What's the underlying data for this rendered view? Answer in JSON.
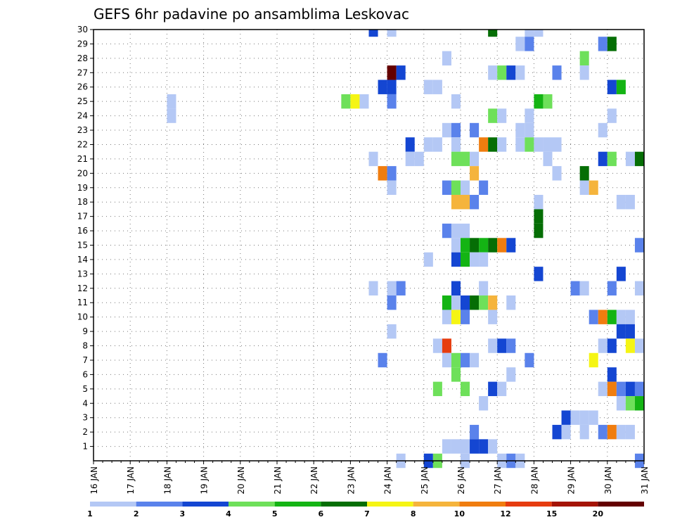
{
  "chart_data": {
    "type": "heatmap",
    "title": "GEFS 6hr padavine po ansamblima Leskovac",
    "xlabel": "",
    "ylabel": "",
    "x_ticks": [
      "16 JAN",
      "17 JAN",
      "18 JAN",
      "19 JAN",
      "20 JAN",
      "21 JAN",
      "22 JAN",
      "23 JAN",
      "24 JAN",
      "25 JAN",
      "26 JAN",
      "27 JAN",
      "28 JAN",
      "29 JAN",
      "30 JAN",
      "31 JAN"
    ],
    "y_ticks": [
      1,
      2,
      3,
      4,
      5,
      6,
      7,
      8,
      9,
      10,
      11,
      12,
      13,
      14,
      15,
      16,
      17,
      18,
      19,
      20,
      21,
      22,
      23,
      24,
      25,
      26,
      27,
      28,
      29,
      30
    ],
    "xlim": [
      "16 JAN 00",
      "31 JAN 00"
    ],
    "ylim": [
      0,
      30
    ],
    "time_step_hours": 6,
    "grid": true,
    "colorbar": {
      "labels": [
        "1",
        "2",
        "3",
        "4",
        "5",
        "6",
        "7",
        "8",
        "10",
        "12",
        "15",
        "20"
      ],
      "colors": [
        "#b4c8f5",
        "#5a82eb",
        "#1446d2",
        "#6ee05a",
        "#14b414",
        "#056e05",
        "#f5f514",
        "#f5b43c",
        "#f07d0f",
        "#e63c0f",
        "#a51405",
        "#640000"
      ]
    },
    "cells": [
      {
        "t": "23 JAN 12",
        "m": 30,
        "c": 2
      },
      {
        "t": "24 JAN 00",
        "m": 30,
        "c": 0
      },
      {
        "t": "26 JAN 18",
        "m": 30,
        "c": 5
      },
      {
        "t": "27 JAN 18",
        "m": 30,
        "c": 0
      },
      {
        "t": "28 JAN 00",
        "m": 30,
        "c": 0
      },
      {
        "t": "27 JAN 12",
        "m": 29,
        "c": 0
      },
      {
        "t": "27 JAN 18",
        "m": 29,
        "c": 1
      },
      {
        "t": "29 JAN 18",
        "m": 29,
        "c": 1
      },
      {
        "t": "30 JAN 00",
        "m": 29,
        "c": 5
      },
      {
        "t": "25 JAN 12",
        "m": 28,
        "c": 0
      },
      {
        "t": "29 JAN 06",
        "m": 28,
        "c": 3
      },
      {
        "t": "24 JAN 00",
        "m": 27,
        "c": 11
      },
      {
        "t": "24 JAN 06",
        "m": 27,
        "c": 2
      },
      {
        "t": "26 JAN 18",
        "m": 27,
        "c": 0
      },
      {
        "t": "27 JAN 00",
        "m": 27,
        "c": 3
      },
      {
        "t": "27 JAN 06",
        "m": 27,
        "c": 2
      },
      {
        "t": "27 JAN 12",
        "m": 27,
        "c": 0
      },
      {
        "t": "28 JAN 12",
        "m": 27,
        "c": 1
      },
      {
        "t": "29 JAN 06",
        "m": 27,
        "c": 0
      },
      {
        "t": "23 JAN 18",
        "m": 26,
        "c": 2
      },
      {
        "t": "24 JAN 00",
        "m": 26,
        "c": 2
      },
      {
        "t": "25 JAN 00",
        "m": 26,
        "c": 0
      },
      {
        "t": "25 JAN 06",
        "m": 26,
        "c": 0
      },
      {
        "t": "30 JAN 00",
        "m": 26,
        "c": 2
      },
      {
        "t": "30 JAN 06",
        "m": 26,
        "c": 4
      },
      {
        "t": "18 JAN 00",
        "m": 25,
        "c": 0
      },
      {
        "t": "22 JAN 18",
        "m": 25,
        "c": 3
      },
      {
        "t": "23 JAN 00",
        "m": 25,
        "c": 6
      },
      {
        "t": "23 JAN 06",
        "m": 25,
        "c": 0
      },
      {
        "t": "24 JAN 00",
        "m": 25,
        "c": 1
      },
      {
        "t": "25 JAN 18",
        "m": 25,
        "c": 0
      },
      {
        "t": "28 JAN 00",
        "m": 25,
        "c": 4
      },
      {
        "t": "28 JAN 06",
        "m": 25,
        "c": 3
      },
      {
        "t": "18 JAN 00",
        "m": 24,
        "c": 0
      },
      {
        "t": "26 JAN 18",
        "m": 24,
        "c": 3
      },
      {
        "t": "27 JAN 00",
        "m": 24,
        "c": 0
      },
      {
        "t": "27 JAN 18",
        "m": 24,
        "c": 0
      },
      {
        "t": "30 JAN 00",
        "m": 24,
        "c": 0
      },
      {
        "t": "25 JAN 12",
        "m": 23,
        "c": 0
      },
      {
        "t": "25 JAN 18",
        "m": 23,
        "c": 1
      },
      {
        "t": "26 JAN 06",
        "m": 23,
        "c": 1
      },
      {
        "t": "27 JAN 12",
        "m": 23,
        "c": 0
      },
      {
        "t": "27 JAN 18",
        "m": 23,
        "c": 0
      },
      {
        "t": "29 JAN 18",
        "m": 23,
        "c": 0
      },
      {
        "t": "24 JAN 12",
        "m": 22,
        "c": 2
      },
      {
        "t": "25 JAN 00",
        "m": 22,
        "c": 0
      },
      {
        "t": "25 JAN 06",
        "m": 22,
        "c": 0
      },
      {
        "t": "25 JAN 18",
        "m": 22,
        "c": 0
      },
      {
        "t": "26 JAN 12",
        "m": 22,
        "c": 8
      },
      {
        "t": "26 JAN 18",
        "m": 22,
        "c": 5
      },
      {
        "t": "27 JAN 00",
        "m": 22,
        "c": 0
      },
      {
        "t": "27 JAN 12",
        "m": 22,
        "c": 0
      },
      {
        "t": "27 JAN 18",
        "m": 22,
        "c": 3
      },
      {
        "t": "28 JAN 00",
        "m": 22,
        "c": 0
      },
      {
        "t": "28 JAN 06",
        "m": 22,
        "c": 0
      },
      {
        "t": "28 JAN 12",
        "m": 22,
        "c": 0
      },
      {
        "t": "23 JAN 12",
        "m": 21,
        "c": 0
      },
      {
        "t": "24 JAN 12",
        "m": 21,
        "c": 0
      },
      {
        "t": "24 JAN 18",
        "m": 21,
        "c": 0
      },
      {
        "t": "25 JAN 18",
        "m": 21,
        "c": 3
      },
      {
        "t": "26 JAN 00",
        "m": 21,
        "c": 3
      },
      {
        "t": "26 JAN 06",
        "m": 21,
        "c": 0
      },
      {
        "t": "28 JAN 06",
        "m": 21,
        "c": 0
      },
      {
        "t": "29 JAN 18",
        "m": 21,
        "c": 2
      },
      {
        "t": "30 JAN 00",
        "m": 21,
        "c": 3
      },
      {
        "t": "30 JAN 12",
        "m": 21,
        "c": 0
      },
      {
        "t": "30 JAN 18",
        "m": 21,
        "c": 5
      },
      {
        "t": "23 JAN 18",
        "m": 20,
        "c": 8
      },
      {
        "t": "24 JAN 00",
        "m": 20,
        "c": 1
      },
      {
        "t": "26 JAN 06",
        "m": 20,
        "c": 7
      },
      {
        "t": "28 JAN 12",
        "m": 20,
        "c": 0
      },
      {
        "t": "29 JAN 06",
        "m": 20,
        "c": 5
      },
      {
        "t": "24 JAN 00",
        "m": 19,
        "c": 0
      },
      {
        "t": "25 JAN 12",
        "m": 19,
        "c": 1
      },
      {
        "t": "25 JAN 18",
        "m": 19,
        "c": 3
      },
      {
        "t": "26 JAN 00",
        "m": 19,
        "c": 0
      },
      {
        "t": "26 JAN 12",
        "m": 19,
        "c": 1
      },
      {
        "t": "29 JAN 06",
        "m": 19,
        "c": 0
      },
      {
        "t": "29 JAN 12",
        "m": 19,
        "c": 7
      },
      {
        "t": "25 JAN 18",
        "m": 18,
        "c": 7
      },
      {
        "t": "26 JAN 00",
        "m": 18,
        "c": 7
      },
      {
        "t": "26 JAN 06",
        "m": 18,
        "c": 1
      },
      {
        "t": "28 JAN 00",
        "m": 18,
        "c": 0
      },
      {
        "t": "30 JAN 06",
        "m": 18,
        "c": 0
      },
      {
        "t": "30 JAN 12",
        "m": 18,
        "c": 0
      },
      {
        "t": "28 JAN 00",
        "m": 17,
        "c": 5
      },
      {
        "t": "25 JAN 12",
        "m": 16,
        "c": 1
      },
      {
        "t": "25 JAN 18",
        "m": 16,
        "c": 0
      },
      {
        "t": "26 JAN 00",
        "m": 16,
        "c": 0
      },
      {
        "t": "28 JAN 00",
        "m": 16,
        "c": 5
      },
      {
        "t": "25 JAN 18",
        "m": 15,
        "c": 0
      },
      {
        "t": "26 JAN 00",
        "m": 15,
        "c": 4
      },
      {
        "t": "26 JAN 06",
        "m": 15,
        "c": 5
      },
      {
        "t": "26 JAN 12",
        "m": 15,
        "c": 4
      },
      {
        "t": "26 JAN 18",
        "m": 15,
        "c": 5
      },
      {
        "t": "27 JAN 00",
        "m": 15,
        "c": 8
      },
      {
        "t": "27 JAN 06",
        "m": 15,
        "c": 2
      },
      {
        "t": "30 JAN 18",
        "m": 15,
        "c": 1
      },
      {
        "t": "25 JAN 00",
        "m": 14,
        "c": 0
      },
      {
        "t": "25 JAN 18",
        "m": 14,
        "c": 2
      },
      {
        "t": "26 JAN 00",
        "m": 14,
        "c": 4
      },
      {
        "t": "26 JAN 06",
        "m": 14,
        "c": 0
      },
      {
        "t": "26 JAN 12",
        "m": 14,
        "c": 0
      },
      {
        "t": "28 JAN 00",
        "m": 13,
        "c": 2
      },
      {
        "t": "30 JAN 06",
        "m": 13,
        "c": 2
      },
      {
        "t": "23 JAN 12",
        "m": 12,
        "c": 0
      },
      {
        "t": "24 JAN 00",
        "m": 12,
        "c": 0
      },
      {
        "t": "24 JAN 06",
        "m": 12,
        "c": 1
      },
      {
        "t": "25 JAN 18",
        "m": 12,
        "c": 2
      },
      {
        "t": "26 JAN 12",
        "m": 12,
        "c": 0
      },
      {
        "t": "29 JAN 00",
        "m": 12,
        "c": 1
      },
      {
        "t": "29 JAN 06",
        "m": 12,
        "c": 0
      },
      {
        "t": "30 JAN 00",
        "m": 12,
        "c": 1
      },
      {
        "t": "30 JAN 18",
        "m": 12,
        "c": 0
      },
      {
        "t": "24 JAN 00",
        "m": 11,
        "c": 1
      },
      {
        "t": "25 JAN 12",
        "m": 11,
        "c": 4
      },
      {
        "t": "25 JAN 18",
        "m": 11,
        "c": 0
      },
      {
        "t": "26 JAN 00",
        "m": 11,
        "c": 2
      },
      {
        "t": "26 JAN 06",
        "m": 11,
        "c": 5
      },
      {
        "t": "26 JAN 12",
        "m": 11,
        "c": 3
      },
      {
        "t": "26 JAN 18",
        "m": 11,
        "c": 7
      },
      {
        "t": "27 JAN 06",
        "m": 11,
        "c": 0
      },
      {
        "t": "25 JAN 12",
        "m": 10,
        "c": 0
      },
      {
        "t": "25 JAN 18",
        "m": 10,
        "c": 6
      },
      {
        "t": "26 JAN 00",
        "m": 10,
        "c": 1
      },
      {
        "t": "26 JAN 18",
        "m": 10,
        "c": 0
      },
      {
        "t": "29 JAN 12",
        "m": 10,
        "c": 1
      },
      {
        "t": "29 JAN 18",
        "m": 10,
        "c": 8
      },
      {
        "t": "30 JAN 00",
        "m": 10,
        "c": 4
      },
      {
        "t": "30 JAN 06",
        "m": 10,
        "c": 0
      },
      {
        "t": "30 JAN 12",
        "m": 10,
        "c": 0
      },
      {
        "t": "24 JAN 00",
        "m": 9,
        "c": 0
      },
      {
        "t": "30 JAN 06",
        "m": 9,
        "c": 2
      },
      {
        "t": "30 JAN 12",
        "m": 9,
        "c": 2
      },
      {
        "t": "25 JAN 06",
        "m": 8,
        "c": 0
      },
      {
        "t": "25 JAN 12",
        "m": 8,
        "c": 9
      },
      {
        "t": "26 JAN 18",
        "m": 8,
        "c": 0
      },
      {
        "t": "27 JAN 00",
        "m": 8,
        "c": 2
      },
      {
        "t": "27 JAN 06",
        "m": 8,
        "c": 1
      },
      {
        "t": "29 JAN 18",
        "m": 8,
        "c": 0
      },
      {
        "t": "30 JAN 00",
        "m": 8,
        "c": 2
      },
      {
        "t": "30 JAN 12",
        "m": 8,
        "c": 6
      },
      {
        "t": "30 JAN 18",
        "m": 8,
        "c": 0
      },
      {
        "t": "23 JAN 18",
        "m": 7,
        "c": 1
      },
      {
        "t": "25 JAN 12",
        "m": 7,
        "c": 0
      },
      {
        "t": "25 JAN 18",
        "m": 7,
        "c": 3
      },
      {
        "t": "26 JAN 00",
        "m": 7,
        "c": 1
      },
      {
        "t": "26 JAN 06",
        "m": 7,
        "c": 0
      },
      {
        "t": "27 JAN 18",
        "m": 7,
        "c": 1
      },
      {
        "t": "29 JAN 12",
        "m": 7,
        "c": 6
      },
      {
        "t": "25 JAN 18",
        "m": 6,
        "c": 3
      },
      {
        "t": "27 JAN 06",
        "m": 6,
        "c": 0
      },
      {
        "t": "30 JAN 00",
        "m": 6,
        "c": 2
      },
      {
        "t": "25 JAN 06",
        "m": 5,
        "c": 3
      },
      {
        "t": "26 JAN 00",
        "m": 5,
        "c": 3
      },
      {
        "t": "26 JAN 18",
        "m": 5,
        "c": 2
      },
      {
        "t": "27 JAN 00",
        "m": 5,
        "c": 0
      },
      {
        "t": "29 JAN 18",
        "m": 5,
        "c": 0
      },
      {
        "t": "30 JAN 00",
        "m": 5,
        "c": 8
      },
      {
        "t": "30 JAN 06",
        "m": 5,
        "c": 1
      },
      {
        "t": "30 JAN 12",
        "m": 5,
        "c": 2
      },
      {
        "t": "30 JAN 18",
        "m": 5,
        "c": 1
      },
      {
        "t": "26 JAN 12",
        "m": 4,
        "c": 0
      },
      {
        "t": "30 JAN 06",
        "m": 4,
        "c": 0
      },
      {
        "t": "30 JAN 12",
        "m": 4,
        "c": 3
      },
      {
        "t": "30 JAN 18",
        "m": 4,
        "c": 4
      },
      {
        "t": "28 JAN 18",
        "m": 3,
        "c": 2
      },
      {
        "t": "29 JAN 00",
        "m": 3,
        "c": 0
      },
      {
        "t": "29 JAN 06",
        "m": 3,
        "c": 0
      },
      {
        "t": "29 JAN 12",
        "m": 3,
        "c": 0
      },
      {
        "t": "26 JAN 06",
        "m": 2,
        "c": 1
      },
      {
        "t": "28 JAN 12",
        "m": 2,
        "c": 2
      },
      {
        "t": "28 JAN 18",
        "m": 2,
        "c": 0
      },
      {
        "t": "29 JAN 06",
        "m": 2,
        "c": 0
      },
      {
        "t": "29 JAN 18",
        "m": 2,
        "c": 1
      },
      {
        "t": "30 JAN 00",
        "m": 2,
        "c": 8
      },
      {
        "t": "30 JAN 06",
        "m": 2,
        "c": 0
      },
      {
        "t": "30 JAN 12",
        "m": 2,
        "c": 0
      },
      {
        "t": "25 JAN 12",
        "m": 1,
        "c": 0
      },
      {
        "t": "25 JAN 18",
        "m": 1,
        "c": 0
      },
      {
        "t": "26 JAN 00",
        "m": 1,
        "c": 0
      },
      {
        "t": "26 JAN 06",
        "m": 1,
        "c": 2
      },
      {
        "t": "26 JAN 12",
        "m": 1,
        "c": 2
      },
      {
        "t": "26 JAN 18",
        "m": 1,
        "c": 0
      },
      {
        "t": "24 JAN 06",
        "m": 0,
        "c": 0
      },
      {
        "t": "25 JAN 00",
        "m": 0,
        "c": 2
      },
      {
        "t": "25 JAN 06",
        "m": 0,
        "c": 3
      },
      {
        "t": "26 JAN 00",
        "m": 0,
        "c": 0
      },
      {
        "t": "27 JAN 00",
        "m": 0,
        "c": 0
      },
      {
        "t": "27 JAN 06",
        "m": 0,
        "c": 1
      },
      {
        "t": "27 JAN 12",
        "m": 0,
        "c": 0
      },
      {
        "t": "30 JAN 18",
        "m": 0,
        "c": 1
      }
    ]
  }
}
